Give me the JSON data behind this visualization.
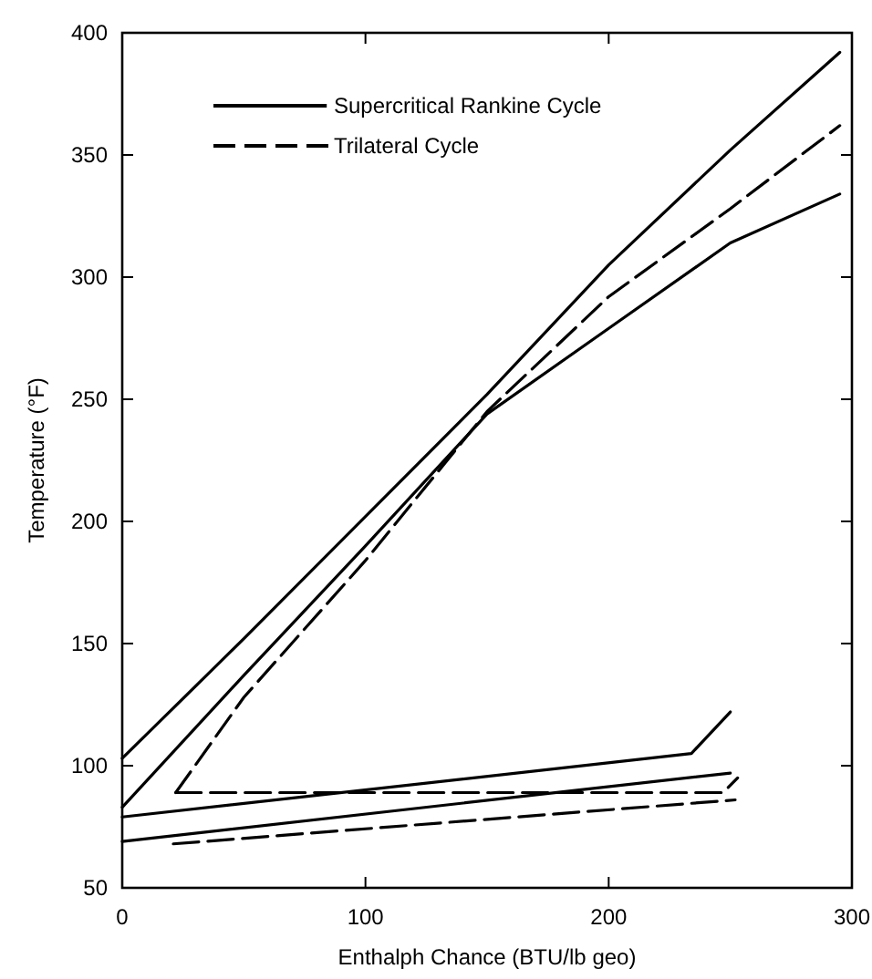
{
  "chart_data": {
    "type": "line",
    "xlabel": "Enthalph Chance (BTU/lb geo)",
    "ylabel": "Temperature (°F)",
    "xlim": [
      0,
      300
    ],
    "ylim": [
      50,
      400
    ],
    "xticks": [
      0,
      100,
      200,
      300
    ],
    "yticks": [
      50,
      100,
      150,
      200,
      250,
      300,
      350,
      400
    ],
    "grid": false,
    "legend": "top left",
    "marker": "none",
    "series": [
      {
        "name": "Supercritical Rankine Cycle",
        "color": "#000000",
        "line_style": "solid",
        "x": [
          0,
          50,
          100,
          150,
          200,
          250,
          295
        ],
        "values": [
          103,
          152,
          202,
          252,
          305,
          352,
          392
        ]
      },
      {
        "name": "Trilateral Cycle",
        "color": "#000000",
        "line_style": "dashed",
        "x": [
          22,
          50,
          100,
          150,
          200,
          250,
          295
        ],
        "values": [
          89,
          128,
          184,
          245,
          292,
          328,
          362
        ]
      },
      {
        "color": "#000000",
        "line_style": "solid",
        "x": [
          0,
          50,
          100,
          150,
          200,
          250,
          295
        ],
        "values": [
          83,
          137,
          190,
          244,
          279,
          314,
          334
        ]
      },
      {
        "color": "#000000",
        "line_style": "dashed",
        "x": [
          22,
          247,
          253
        ],
        "values": [
          89,
          89,
          95
        ]
      },
      {
        "color": "#000000",
        "line_style": "dashed",
        "x": [
          21,
          252
        ],
        "values": [
          68,
          86
        ]
      },
      {
        "color": "#000000",
        "line_style": "solid",
        "x": [
          0,
          234,
          250
        ],
        "values": [
          79,
          105,
          122
        ]
      },
      {
        "color": "#000000",
        "line_style": "solid",
        "x": [
          0,
          250
        ],
        "values": [
          69,
          97
        ]
      }
    ]
  }
}
